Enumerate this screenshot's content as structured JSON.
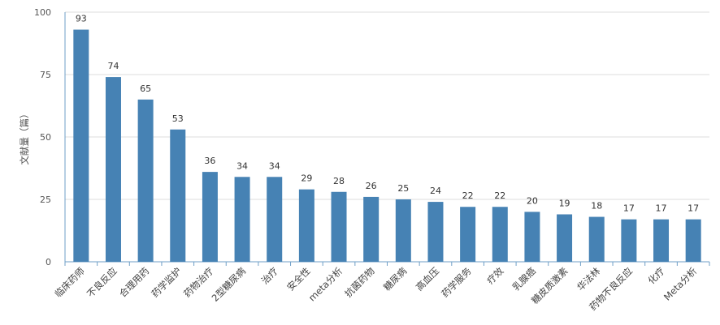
{
  "chart_data": {
    "type": "bar",
    "title": "",
    "xlabel": "",
    "ylabel": "文献量（篇）",
    "ylim": [
      0,
      100
    ],
    "yticks": [
      0,
      25,
      50,
      75,
      100
    ],
    "grid": true,
    "bar_color": "#4682b4",
    "categories": [
      "临床药师",
      "不良反应",
      "合理用药",
      "药学监护",
      "药物治疗",
      "2型糖尿病",
      "治疗",
      "安全性",
      "meta分析",
      "抗菌药物",
      "糖尿病",
      "高血压",
      "药学服务",
      "疗效",
      "乳腺癌",
      "糖皮质激素",
      "华法林",
      "药物不良反应",
      "化疗",
      "Meta分析"
    ],
    "values": [
      93,
      74,
      65,
      53,
      36,
      34,
      34,
      29,
      28,
      26,
      25,
      24,
      22,
      22,
      20,
      19,
      18,
      17,
      17,
      17
    ]
  }
}
